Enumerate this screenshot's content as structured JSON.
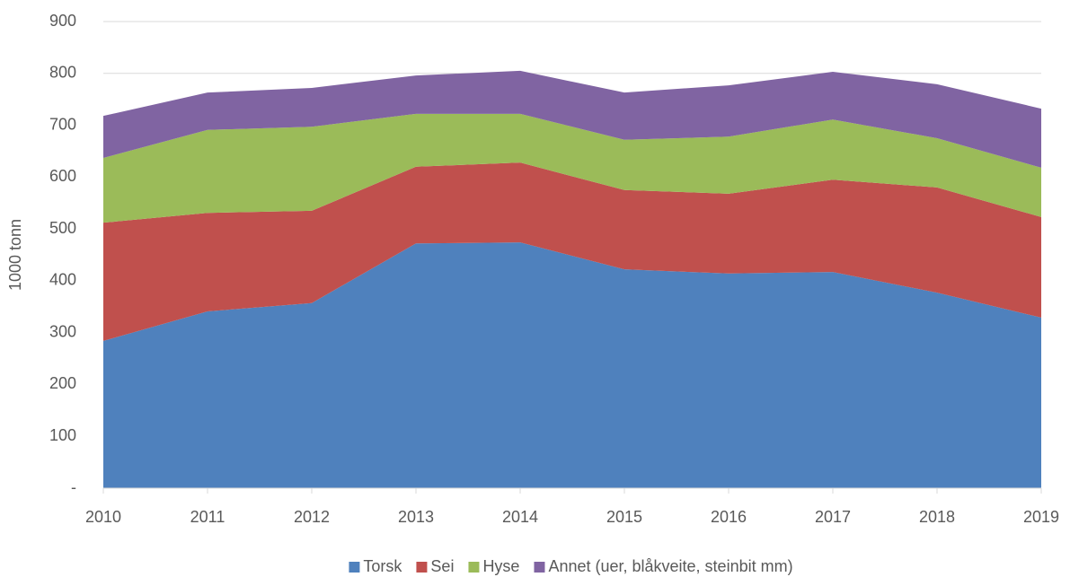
{
  "chart_data": {
    "type": "stacked_area",
    "y_label": "1000 tonn",
    "x": [
      2010,
      2011,
      2012,
      2013,
      2014,
      2015,
      2016,
      2017,
      2018,
      2019
    ],
    "xlim": [
      2010,
      2019
    ],
    "xticks": [
      2010,
      2011,
      2012,
      2013,
      2014,
      2015,
      2016,
      2017,
      2018,
      2019
    ],
    "ylim": [
      0,
      900
    ],
    "yticks": [
      {
        "value": 0,
        "label": "-"
      },
      100,
      200,
      300,
      400,
      500,
      600,
      700,
      800,
      900
    ],
    "grid": true,
    "legend": "bottom",
    "series": [
      {
        "name": "Torsk",
        "color": "#4f81bd",
        "values": [
          284,
          341,
          357,
          472,
          474,
          422,
          414,
          417,
          377,
          329
        ]
      },
      {
        "name": "Sei",
        "color": "#c0504d",
        "values": [
          228,
          190,
          178,
          148,
          154,
          153,
          154,
          178,
          203,
          194
        ]
      },
      {
        "name": "Hyse",
        "color": "#9bbb59",
        "values": [
          125,
          160,
          162,
          102,
          94,
          97,
          110,
          116,
          95,
          95
        ]
      },
      {
        "name": "Annet (uer, blåkveite, steinbit mm)",
        "color": "#8064a2",
        "values": [
          81,
          72,
          75,
          74,
          83,
          91,
          99,
          92,
          104,
          114
        ]
      }
    ]
  }
}
